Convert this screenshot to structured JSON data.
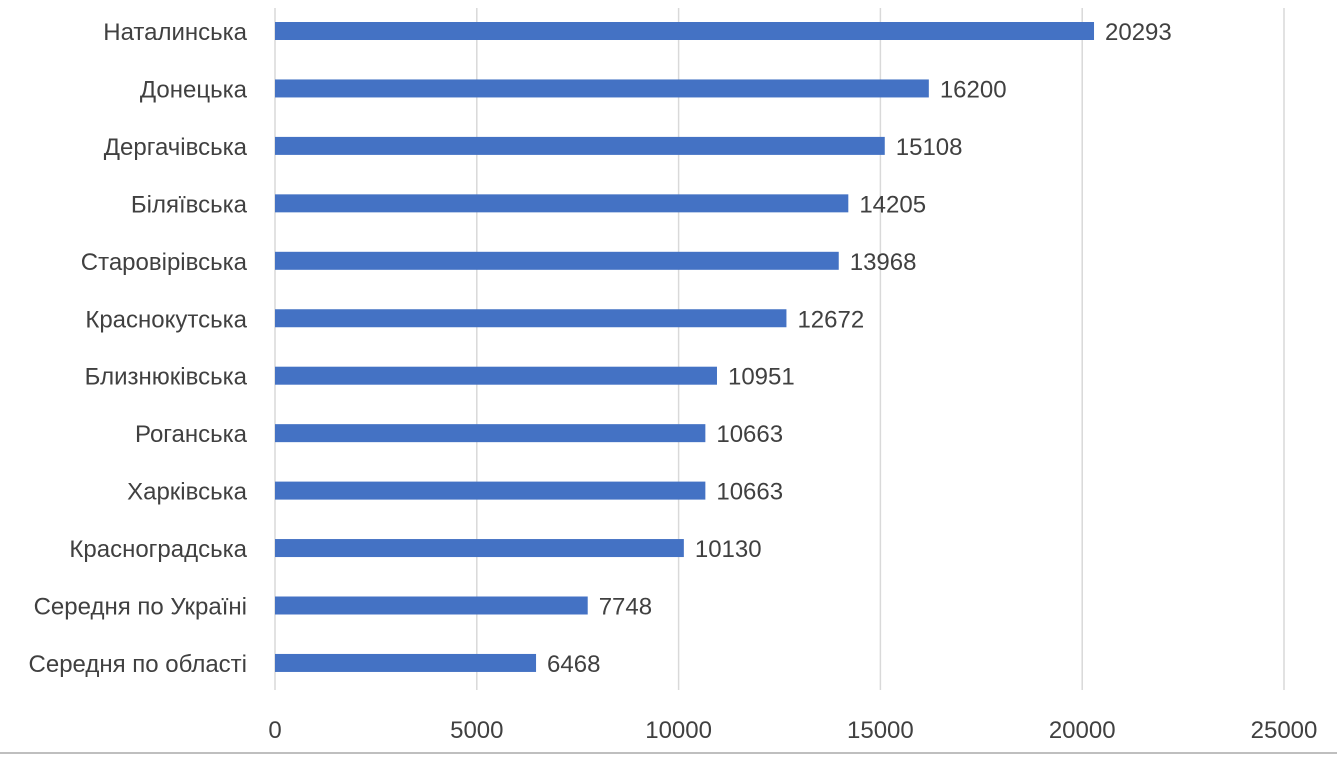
{
  "chart_data": {
    "type": "bar",
    "orientation": "horizontal",
    "categories": [
      "Наталинська",
      "Донецька",
      "Дергачівська",
      "Біляївська",
      "Старовірівська",
      "Краснокутська",
      "Близнюківська",
      "Роганська",
      "Харківська",
      "Красноградська",
      "Середня по Україні",
      "Середня по області"
    ],
    "values": [
      20293,
      16200,
      15108,
      14205,
      13968,
      12672,
      10951,
      10663,
      10663,
      10130,
      7748,
      6468
    ],
    "data_labels": [
      "20293",
      "16200",
      "15108",
      "14205",
      "13968",
      "12672",
      "10951",
      "10663",
      "10663",
      "10130",
      "7748",
      "6468"
    ],
    "xlim": [
      0,
      25000
    ],
    "x_ticks": [
      0,
      5000,
      10000,
      15000,
      20000,
      25000
    ],
    "x_tick_labels": [
      "0",
      "5000",
      "10000",
      "15000",
      "20000",
      "25000"
    ],
    "grid": true,
    "legend": "none",
    "bar_color": "#4472C4",
    "grid_color": "#D9D9D9",
    "text_color": "#404040"
  }
}
